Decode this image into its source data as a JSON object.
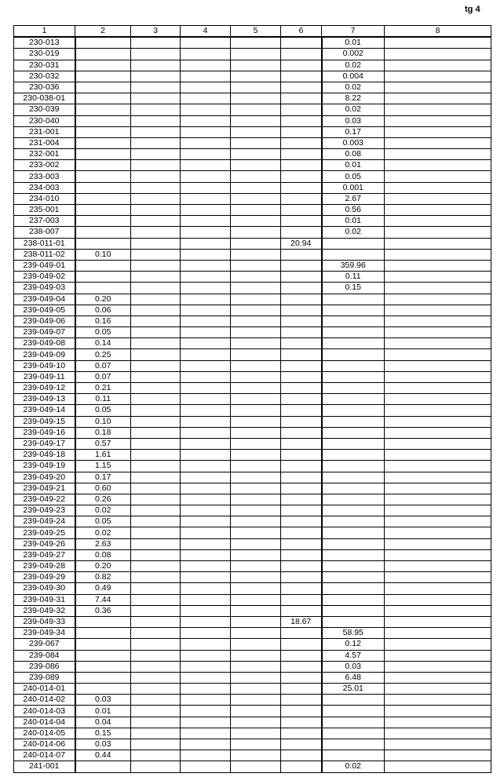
{
  "page_label": "tg 4",
  "columns": [
    "1",
    "2",
    "3",
    "4",
    "5",
    "6",
    "7",
    "8"
  ],
  "rows": [
    [
      "230-013",
      "",
      "",
      "",
      "",
      "",
      "0.01",
      ""
    ],
    [
      "230-019",
      "",
      "",
      "",
      "",
      "",
      "0.002",
      ""
    ],
    [
      "230-031",
      "",
      "",
      "",
      "",
      "",
      "0.02",
      ""
    ],
    [
      "230-032",
      "",
      "",
      "",
      "",
      "",
      "0.004",
      ""
    ],
    [
      "230-036",
      "",
      "",
      "",
      "",
      "",
      "0.02",
      ""
    ],
    [
      "230-038-01",
      "",
      "",
      "",
      "",
      "",
      "8.22",
      ""
    ],
    [
      "230-039",
      "",
      "",
      "",
      "",
      "",
      "0.02",
      ""
    ],
    [
      "230-040",
      "",
      "",
      "",
      "",
      "",
      "0.03",
      ""
    ],
    [
      "231-001",
      "",
      "",
      "",
      "",
      "",
      "0.17",
      ""
    ],
    [
      "231-004",
      "",
      "",
      "",
      "",
      "",
      "0.003",
      ""
    ],
    [
      "232-001",
      "",
      "",
      "",
      "",
      "",
      "0.08",
      ""
    ],
    [
      "233-002",
      "",
      "",
      "",
      "",
      "",
      "0.01",
      ""
    ],
    [
      "233-003",
      "",
      "",
      "",
      "",
      "",
      "0.05",
      ""
    ],
    [
      "234-003",
      "",
      "",
      "",
      "",
      "",
      "0.001",
      ""
    ],
    [
      "234-010",
      "",
      "",
      "",
      "",
      "",
      "2.67",
      ""
    ],
    [
      "235-001",
      "",
      "",
      "",
      "",
      "",
      "0.56",
      ""
    ],
    [
      "237-003",
      "",
      "",
      "",
      "",
      "",
      "0.01",
      ""
    ],
    [
      "238-007",
      "",
      "",
      "",
      "",
      "",
      "0.02",
      ""
    ],
    [
      "238-011-01",
      "",
      "",
      "",
      "",
      "20.94",
      "",
      ""
    ],
    [
      "238-011-02",
      "0.10",
      "",
      "",
      "",
      "",
      "",
      ""
    ],
    [
      "239-049-01",
      "",
      "",
      "",
      "",
      "",
      "359.96",
      ""
    ],
    [
      "239-049-02",
      "",
      "",
      "",
      "",
      "",
      "0.11",
      ""
    ],
    [
      "239-049-03",
      "",
      "",
      "",
      "",
      "",
      "0.15",
      ""
    ],
    [
      "239-049-04",
      "0.20",
      "",
      "",
      "",
      "",
      "",
      ""
    ],
    [
      "239-049-05",
      "0.06",
      "",
      "",
      "",
      "",
      "",
      ""
    ],
    [
      "239-049-06",
      "0.16",
      "",
      "",
      "",
      "",
      "",
      ""
    ],
    [
      "239-049-07",
      "0.05",
      "",
      "",
      "",
      "",
      "",
      ""
    ],
    [
      "239-049-08",
      "0.14",
      "",
      "",
      "",
      "",
      "",
      ""
    ],
    [
      "239-049-09",
      "0.25",
      "",
      "",
      "",
      "",
      "",
      ""
    ],
    [
      "239-049-10",
      "0.07",
      "",
      "",
      "",
      "",
      "",
      ""
    ],
    [
      "239-049-11",
      "0.07",
      "",
      "",
      "",
      "",
      "",
      ""
    ],
    [
      "239-049-12",
      "0.21",
      "",
      "",
      "",
      "",
      "",
      ""
    ],
    [
      "239-049-13",
      "0.11",
      "",
      "",
      "",
      "",
      "",
      ""
    ],
    [
      "239-049-14",
      "0.05",
      "",
      "",
      "",
      "",
      "",
      ""
    ],
    [
      "239-049-15",
      "0.10",
      "",
      "",
      "",
      "",
      "",
      ""
    ],
    [
      "239-049-16",
      "0.18",
      "",
      "",
      "",
      "",
      "",
      ""
    ],
    [
      "239-049-17",
      "0.57",
      "",
      "",
      "",
      "",
      "",
      ""
    ],
    [
      "239-049-18",
      "1.61",
      "",
      "",
      "",
      "",
      "",
      ""
    ],
    [
      "239-049-19",
      "1.15",
      "",
      "",
      "",
      "",
      "",
      ""
    ],
    [
      "239-049-20",
      "0.17",
      "",
      "",
      "",
      "",
      "",
      ""
    ],
    [
      "239-049-21",
      "0.60",
      "",
      "",
      "",
      "",
      "",
      ""
    ],
    [
      "239-049-22",
      "0.26",
      "",
      "",
      "",
      "",
      "",
      ""
    ],
    [
      "239-049-23",
      "0.02",
      "",
      "",
      "",
      "",
      "",
      ""
    ],
    [
      "239-049-24",
      "0.05",
      "",
      "",
      "",
      "",
      "",
      ""
    ],
    [
      "239-049-25",
      "0.02",
      "",
      "",
      "",
      "",
      "",
      ""
    ],
    [
      "239-049-26",
      "2.63",
      "",
      "",
      "",
      "",
      "",
      ""
    ],
    [
      "239-049-27",
      "0.08",
      "",
      "",
      "",
      "",
      "",
      ""
    ],
    [
      "239-049-28",
      "0.20",
      "",
      "",
      "",
      "",
      "",
      ""
    ],
    [
      "239-049-29",
      "0.82",
      "",
      "",
      "",
      "",
      "",
      ""
    ],
    [
      "239-049-30",
      "0.49",
      "",
      "",
      "",
      "",
      "",
      ""
    ],
    [
      "239-049-31",
      "7.44",
      "",
      "",
      "",
      "",
      "",
      ""
    ],
    [
      "239-049-32",
      "0.36",
      "",
      "",
      "",
      "",
      "",
      ""
    ],
    [
      "239-049-33",
      "",
      "",
      "",
      "",
      "18.67",
      "",
      ""
    ],
    [
      "239-049-34",
      "",
      "",
      "",
      "",
      "",
      "58.95",
      ""
    ],
    [
      "239-067",
      "",
      "",
      "",
      "",
      "",
      "0.12",
      ""
    ],
    [
      "239-084",
      "",
      "",
      "",
      "",
      "",
      "4.57",
      ""
    ],
    [
      "239-086",
      "",
      "",
      "",
      "",
      "",
      "0.03",
      ""
    ],
    [
      "239-089",
      "",
      "",
      "",
      "",
      "",
      "6.48",
      ""
    ],
    [
      "240-014-01",
      "",
      "",
      "",
      "",
      "",
      "25.01",
      ""
    ],
    [
      "240-014-02",
      "0.03",
      "",
      "",
      "",
      "",
      "",
      ""
    ],
    [
      "240-014-03",
      "0.01",
      "",
      "",
      "",
      "",
      "",
      ""
    ],
    [
      "240-014-04",
      "0.04",
      "",
      "",
      "",
      "",
      "",
      ""
    ],
    [
      "240-014-05",
      "0.15",
      "",
      "",
      "",
      "",
      "",
      ""
    ],
    [
      "240-014-06",
      "0.03",
      "",
      "",
      "",
      "",
      "",
      ""
    ],
    [
      "240-014-07",
      "0.44",
      "",
      "",
      "",
      "",
      "",
      ""
    ],
    [
      "241-001",
      "",
      "",
      "",
      "",
      "",
      "0.02",
      ""
    ]
  ]
}
